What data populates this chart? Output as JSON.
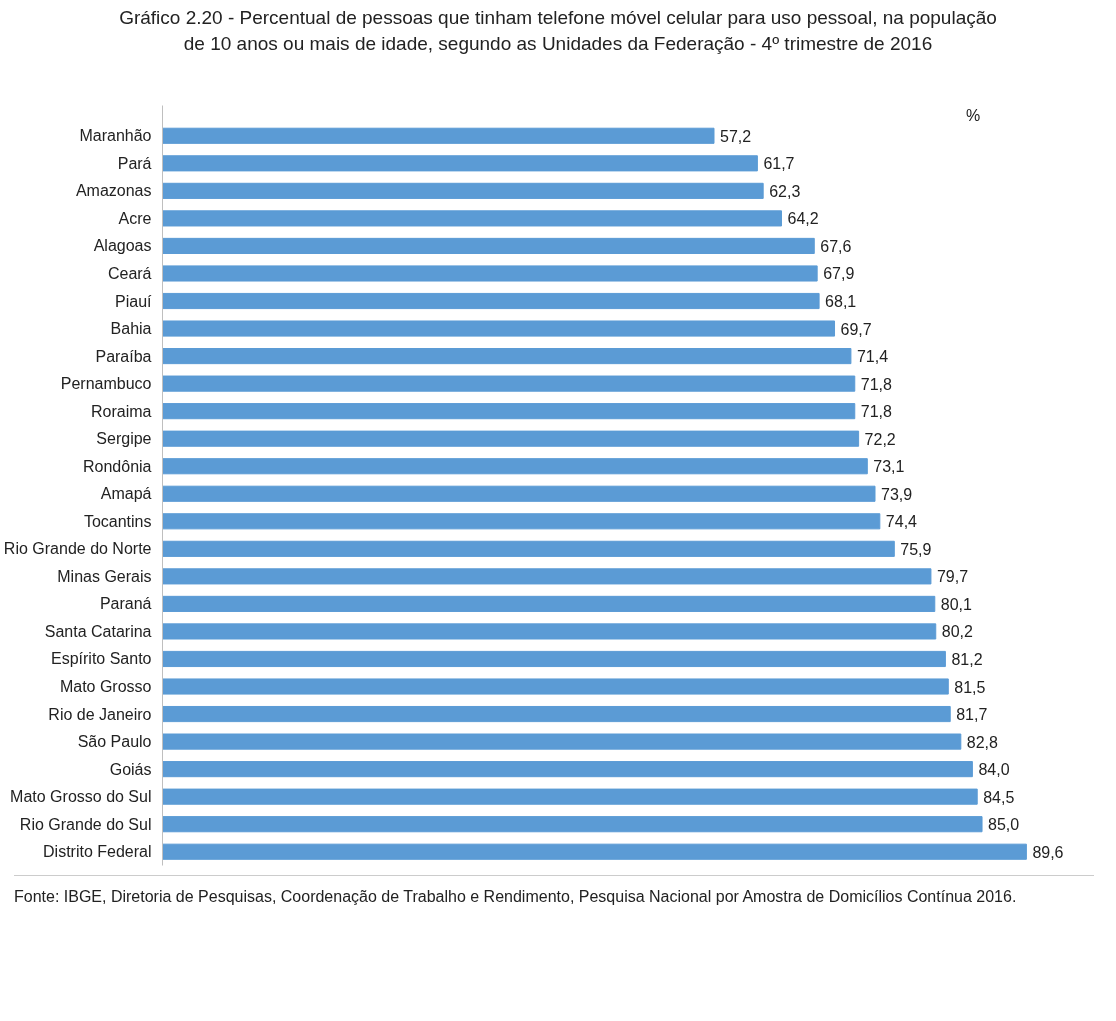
{
  "chart_data": {
    "type": "bar",
    "orientation": "horizontal",
    "title": "Gráfico 2.20 - Percentual de pessoas que tinham telefone móvel celular para uso pessoal, na população de 10 anos ou mais de idade, segundo as Unidades da Federação - 4º trimestre de 2016",
    "categories": [
      "Maranhão",
      "Pará",
      "Amazonas",
      "Acre",
      "Alagoas",
      "Ceará",
      "Piauí",
      "Bahia",
      "Paraíba",
      "Pernambuco",
      "Roraima",
      "Sergipe",
      "Rondônia",
      "Amapá",
      "Tocantins",
      "Rio Grande do Norte",
      "Minas Gerais",
      "Paraná",
      "Santa Catarina",
      "Espírito Santo",
      "Mato Grosso",
      "Rio de Janeiro",
      "São Paulo",
      "Goiás",
      "Mato Grosso do Sul",
      "Rio Grande do Sul",
      "Distrito Federal"
    ],
    "values": [
      57.2,
      61.7,
      62.3,
      64.2,
      67.6,
      67.9,
      68.1,
      69.7,
      71.4,
      71.8,
      71.8,
      72.2,
      73.1,
      73.9,
      74.4,
      75.9,
      79.7,
      80.1,
      80.2,
      81.2,
      81.5,
      81.7,
      82.8,
      84.0,
      84.5,
      85.0,
      89.6
    ],
    "color": "#5b9bd5",
    "value_labels": [
      "57,2",
      "61,7",
      "62,3",
      "64,2",
      "67,6",
      "67,9",
      "68,1",
      "69,7",
      "71,4",
      "71,8",
      "71,8",
      "72,2",
      "73,1",
      "73,9",
      "74,4",
      "75,9",
      "79,7",
      "80,1",
      "80,2",
      "81,2",
      "81,5",
      "81,7",
      "82,8",
      "84,0",
      "84,5",
      "85,0",
      "89,6"
    ],
    "annotations": [
      "%",
      "Fonte: IBGE, Diretoria de Pesquisas, Coordenação de Trabalho e Rendimento, Pesquisa Nacional por Amostra de Domicílios Contínua 2016."
    ]
  }
}
